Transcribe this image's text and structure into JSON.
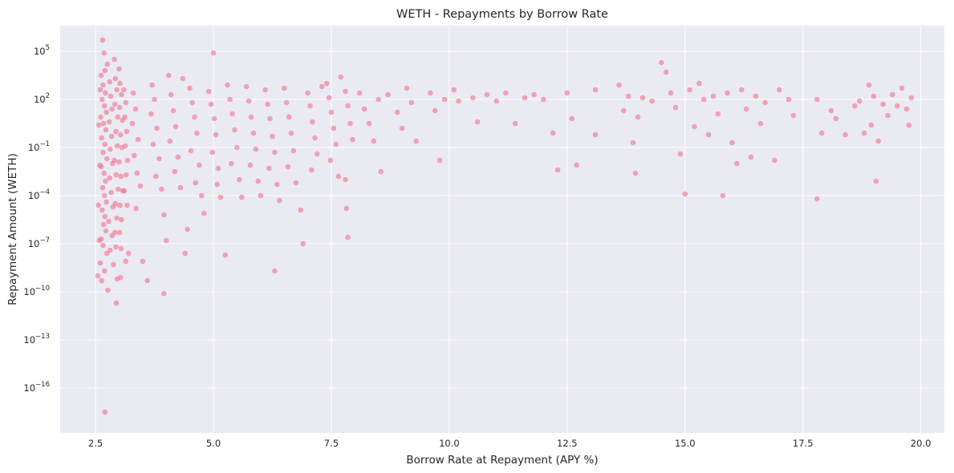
{
  "chart_data": {
    "type": "scatter",
    "title": "WETH - Repayments by Borrow Rate",
    "xlabel": "Borrow Rate at Repayment (APY %)",
    "ylabel": "Repayment Amount (WETH)",
    "xlim": [
      1.75,
      20.5
    ],
    "ylim_log10": [
      -18.8,
      6.6
    ],
    "y_scale": "log",
    "grid": true,
    "x_ticks": [
      2.5,
      5.0,
      7.5,
      10.0,
      12.5,
      15.0,
      17.5,
      20.0
    ],
    "x_tick_labels": [
      "2.5",
      "5.0",
      "7.5",
      "10.0",
      "12.5",
      "15.0",
      "17.5",
      "20.0"
    ],
    "y_tick_exponents": [
      5,
      2,
      -1,
      -4,
      -7,
      -10,
      -13,
      -16
    ],
    "y_tick_base": "10",
    "marker_color": "#f2708a",
    "points": [
      [
        2.65,
        5.7
      ],
      [
        2.68,
        4.9
      ],
      [
        2.7,
        3.8
      ],
      [
        2.75,
        4.2
      ],
      [
        2.62,
        3.5
      ],
      [
        2.66,
        2.9
      ],
      [
        2.71,
        2.4
      ],
      [
        2.64,
        2.0
      ],
      [
        2.69,
        1.6
      ],
      [
        2.73,
        1.2
      ],
      [
        2.61,
        0.9
      ],
      [
        2.67,
        0.5
      ],
      [
        2.72,
        0.1
      ],
      [
        2.63,
        -0.4
      ],
      [
        2.7,
        -0.8
      ],
      [
        2.66,
        -1.3
      ],
      [
        2.74,
        -1.7
      ],
      [
        2.62,
        -2.2
      ],
      [
        2.68,
        -2.6
      ],
      [
        2.71,
        -3.1
      ],
      [
        2.65,
        -3.5
      ],
      [
        2.69,
        -4.0
      ],
      [
        2.73,
        -4.4
      ],
      [
        2.64,
        -4.9
      ],
      [
        2.7,
        -5.3
      ],
      [
        2.67,
        -5.8
      ],
      [
        2.72,
        -6.2
      ],
      [
        2.62,
        -6.7
      ],
      [
        2.66,
        -7.1
      ],
      [
        2.74,
        -7.6
      ],
      [
        2.6,
        -8.2
      ],
      [
        2.69,
        -8.7
      ],
      [
        2.63,
        -9.3
      ],
      [
        2.76,
        -9.9
      ],
      [
        2.55,
        -9.0
      ],
      [
        2.58,
        -6.8
      ],
      [
        2.56,
        -4.6
      ],
      [
        2.59,
        -2.1
      ],
      [
        2.57,
        0.4
      ],
      [
        2.6,
        2.6
      ],
      [
        2.8,
        3.1
      ],
      [
        2.82,
        2.2
      ],
      [
        2.85,
        1.4
      ],
      [
        2.79,
        0.6
      ],
      [
        2.84,
        -0.3
      ],
      [
        2.81,
        -1.1
      ],
      [
        2.86,
        -2.0
      ],
      [
        2.8,
        -2.9
      ],
      [
        2.83,
        -3.8
      ],
      [
        2.87,
        -4.7
      ],
      [
        2.78,
        -5.6
      ],
      [
        2.85,
        -6.5
      ],
      [
        2.81,
        -7.4
      ],
      [
        2.88,
        -8.3
      ],
      [
        2.9,
        4.5
      ],
      [
        2.92,
        3.3
      ],
      [
        2.95,
        2.6
      ],
      [
        2.91,
        1.7
      ],
      [
        2.97,
        0.9
      ],
      [
        2.93,
        0.0
      ],
      [
        2.96,
        -0.9
      ],
      [
        2.9,
        -1.8
      ],
      [
        2.94,
        -2.7
      ],
      [
        2.98,
        -3.6
      ],
      [
        2.92,
        -4.5
      ],
      [
        2.95,
        -5.4
      ],
      [
        2.91,
        -6.3
      ],
      [
        2.93,
        -7.2
      ],
      [
        2.96,
        -9.2
      ],
      [
        2.94,
        -10.7
      ],
      [
        3.0,
        3.9
      ],
      [
        3.02,
        3.0
      ],
      [
        3.05,
        2.3
      ],
      [
        3.01,
        1.5
      ],
      [
        3.07,
        0.7
      ],
      [
        3.03,
        -0.2
      ],
      [
        3.06,
        -1.0
      ],
      [
        3.0,
        -1.9
      ],
      [
        3.04,
        -2.8
      ],
      [
        3.08,
        -3.7
      ],
      [
        3.02,
        -4.6
      ],
      [
        3.05,
        -5.5
      ],
      [
        3.01,
        -6.3
      ],
      [
        3.04,
        -7.3
      ],
      [
        3.03,
        -9.1
      ],
      [
        3.1,
        2.6
      ],
      [
        3.14,
        1.8
      ],
      [
        3.12,
        0.9
      ],
      [
        3.16,
        0.0
      ],
      [
        3.13,
        -0.9
      ],
      [
        3.18,
        -1.8
      ],
      [
        3.15,
        -2.7
      ],
      [
        3.11,
        -3.7
      ],
      [
        3.17,
        -4.6
      ],
      [
        3.2,
        -7.6
      ],
      [
        3.14,
        -8.1
      ],
      [
        3.3,
        2.4
      ],
      [
        3.35,
        1.4
      ],
      [
        3.28,
        0.5
      ],
      [
        3.4,
        -0.5
      ],
      [
        3.32,
        -1.5
      ],
      [
        3.38,
        -2.6
      ],
      [
        3.45,
        -3.4
      ],
      [
        3.36,
        -4.8
      ],
      [
        3.5,
        -8.1
      ],
      [
        3.6,
        -9.3
      ],
      [
        3.7,
        2.9
      ],
      [
        3.75,
        2.0
      ],
      [
        3.68,
        1.1
      ],
      [
        3.8,
        0.2
      ],
      [
        3.72,
        -0.8
      ],
      [
        3.85,
        -1.7
      ],
      [
        3.78,
        -2.8
      ],
      [
        3.9,
        -3.6
      ],
      [
        3.95,
        -5.2
      ],
      [
        4.0,
        -6.8
      ],
      [
        3.95,
        -10.1
      ],
      [
        4.05,
        3.5
      ],
      [
        4.1,
        2.3
      ],
      [
        4.15,
        1.3
      ],
      [
        4.2,
        0.3
      ],
      [
        4.08,
        -0.6
      ],
      [
        4.25,
        -1.6
      ],
      [
        4.18,
        -2.5
      ],
      [
        4.3,
        -3.5
      ],
      [
        4.45,
        -6.1
      ],
      [
        4.4,
        -7.6
      ],
      [
        4.35,
        3.3
      ],
      [
        4.5,
        2.7
      ],
      [
        4.55,
        1.8
      ],
      [
        4.6,
        0.9
      ],
      [
        4.65,
        -0.1
      ],
      [
        4.52,
        -1.2
      ],
      [
        4.7,
        -2.1
      ],
      [
        4.62,
        -3.2
      ],
      [
        4.75,
        -4.0
      ],
      [
        4.8,
        -5.1
      ],
      [
        4.9,
        2.5
      ],
      [
        4.95,
        1.7
      ],
      [
        5.0,
        4.9
      ],
      [
        5.02,
        0.8
      ],
      [
        5.05,
        -0.2
      ],
      [
        4.98,
        -1.3
      ],
      [
        5.1,
        -2.3
      ],
      [
        5.08,
        -3.3
      ],
      [
        5.15,
        -4.1
      ],
      [
        5.25,
        -7.7
      ],
      [
        5.3,
        2.9
      ],
      [
        5.35,
        2.0
      ],
      [
        5.4,
        1.1
      ],
      [
        5.45,
        0.1
      ],
      [
        5.5,
        -1.0
      ],
      [
        5.38,
        -2.0
      ],
      [
        5.55,
        -3.0
      ],
      [
        5.6,
        -4.1
      ],
      [
        5.7,
        2.8
      ],
      [
        5.75,
        1.9
      ],
      [
        5.8,
        0.9
      ],
      [
        5.85,
        -0.1
      ],
      [
        5.9,
        -1.1
      ],
      [
        5.78,
        -2.1
      ],
      [
        5.95,
        -3.1
      ],
      [
        6.0,
        -4.0
      ],
      [
        6.1,
        2.6
      ],
      [
        6.15,
        1.7
      ],
      [
        6.2,
        0.8
      ],
      [
        6.25,
        -0.3
      ],
      [
        6.3,
        -1.3
      ],
      [
        6.18,
        -2.3
      ],
      [
        6.35,
        -3.3
      ],
      [
        6.4,
        -4.3
      ],
      [
        6.3,
        -8.7
      ],
      [
        6.5,
        2.7
      ],
      [
        6.55,
        1.8
      ],
      [
        6.6,
        0.9
      ],
      [
        6.65,
        -0.1
      ],
      [
        6.7,
        -1.2
      ],
      [
        6.58,
        -2.2
      ],
      [
        6.75,
        -3.2
      ],
      [
        6.85,
        -4.9
      ],
      [
        6.9,
        -7.0
      ],
      [
        7.0,
        2.4
      ],
      [
        7.05,
        1.6
      ],
      [
        7.1,
        0.6
      ],
      [
        7.15,
        -0.4
      ],
      [
        7.2,
        -1.4
      ],
      [
        7.08,
        -2.4
      ],
      [
        7.3,
        2.8
      ],
      [
        7.4,
        3.0
      ],
      [
        7.45,
        2.1
      ],
      [
        7.5,
        1.2
      ],
      [
        7.55,
        0.2
      ],
      [
        7.6,
        -0.8
      ],
      [
        7.48,
        -1.8
      ],
      [
        7.65,
        -2.8
      ],
      [
        7.7,
        3.4
      ],
      [
        7.8,
        2.5
      ],
      [
        7.85,
        1.6
      ],
      [
        7.9,
        0.5
      ],
      [
        7.95,
        -0.5
      ],
      [
        7.8,
        -3.0
      ],
      [
        7.82,
        -4.8
      ],
      [
        7.85,
        -6.6
      ],
      [
        8.1,
        2.4
      ],
      [
        8.2,
        1.4
      ],
      [
        8.3,
        0.5
      ],
      [
        8.4,
        -0.6
      ],
      [
        8.5,
        2.0
      ],
      [
        8.55,
        -2.5
      ],
      [
        8.7,
        2.3
      ],
      [
        8.9,
        1.2
      ],
      [
        9.0,
        0.2
      ],
      [
        9.1,
        2.7
      ],
      [
        9.2,
        1.8
      ],
      [
        9.3,
        -0.6
      ],
      [
        9.6,
        2.4
      ],
      [
        9.7,
        1.3
      ],
      [
        9.8,
        -1.8
      ],
      [
        9.9,
        2.0
      ],
      [
        10.1,
        2.6
      ],
      [
        10.2,
        1.9
      ],
      [
        10.5,
        2.1
      ],
      [
        10.6,
        0.6
      ],
      [
        10.8,
        2.3
      ],
      [
        11.0,
        1.9
      ],
      [
        11.2,
        2.4
      ],
      [
        11.4,
        0.5
      ],
      [
        11.6,
        2.1
      ],
      [
        11.8,
        2.3
      ],
      [
        12.0,
        2.0
      ],
      [
        12.2,
        -0.1
      ],
      [
        12.3,
        -2.4
      ],
      [
        12.5,
        2.4
      ],
      [
        12.6,
        0.8
      ],
      [
        12.7,
        -2.1
      ],
      [
        13.1,
        2.6
      ],
      [
        13.1,
        -0.2
      ],
      [
        13.6,
        2.9
      ],
      [
        13.7,
        1.3
      ],
      [
        13.8,
        2.2
      ],
      [
        13.9,
        -0.7
      ],
      [
        13.95,
        -2.6
      ],
      [
        14.0,
        0.9
      ],
      [
        14.1,
        2.1
      ],
      [
        14.3,
        1.9
      ],
      [
        14.5,
        4.3
      ],
      [
        14.6,
        3.7
      ],
      [
        14.7,
        2.4
      ],
      [
        14.8,
        1.5
      ],
      [
        14.9,
        -1.4
      ],
      [
        15.0,
        -3.9
      ],
      [
        15.1,
        2.6
      ],
      [
        15.2,
        0.3
      ],
      [
        15.3,
        3.0
      ],
      [
        15.4,
        2.0
      ],
      [
        15.5,
        -0.2
      ],
      [
        15.6,
        2.2
      ],
      [
        15.7,
        1.1
      ],
      [
        15.8,
        -4.0
      ],
      [
        15.9,
        2.4
      ],
      [
        16.0,
        -0.7
      ],
      [
        16.1,
        -2.0
      ],
      [
        16.2,
        2.6
      ],
      [
        16.3,
        1.4
      ],
      [
        16.4,
        -1.6
      ],
      [
        16.5,
        2.2
      ],
      [
        16.6,
        0.5
      ],
      [
        16.7,
        1.8
      ],
      [
        16.9,
        -1.8
      ],
      [
        17.0,
        2.6
      ],
      [
        17.2,
        2.0
      ],
      [
        17.3,
        1.0
      ],
      [
        17.8,
        2.0
      ],
      [
        17.8,
        -4.2
      ],
      [
        17.9,
        -0.1
      ],
      [
        18.1,
        1.3
      ],
      [
        18.2,
        0.8
      ],
      [
        18.4,
        -0.2
      ],
      [
        18.6,
        1.6
      ],
      [
        18.7,
        1.9
      ],
      [
        18.8,
        -0.1
      ],
      [
        18.9,
        2.9
      ],
      [
        18.95,
        0.4
      ],
      [
        19.0,
        2.2
      ],
      [
        19.1,
        -0.6
      ],
      [
        19.2,
        1.7
      ],
      [
        19.3,
        1.0
      ],
      [
        19.4,
        2.3
      ],
      [
        19.5,
        1.6
      ],
      [
        19.6,
        2.7
      ],
      [
        19.7,
        1.4
      ],
      [
        19.75,
        0.4
      ],
      [
        19.8,
        2.1
      ],
      [
        19.05,
        -3.1
      ],
      [
        2.7,
        -17.5
      ]
    ]
  }
}
